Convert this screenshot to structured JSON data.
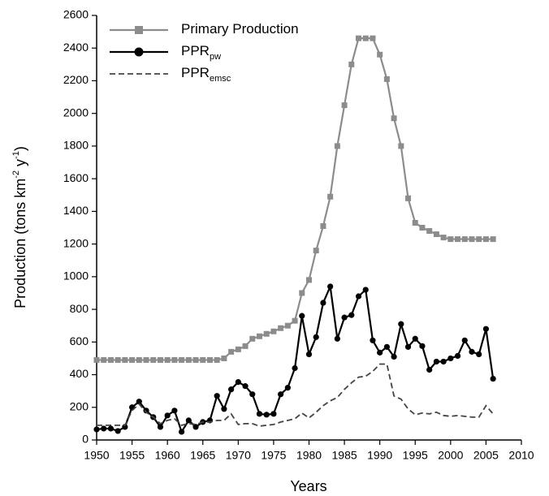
{
  "chart_data": {
    "type": "line",
    "x_label": "Years",
    "y_label": [
      {
        "text": "Production (tons km"
      },
      {
        "text": "-2",
        "sup": true
      },
      {
        "text": " y"
      },
      {
        "text": "-1",
        "sup": true
      },
      {
        "text": ")"
      }
    ],
    "xlim": [
      1950,
      2010
    ],
    "xticks": [
      1950,
      1955,
      1960,
      1965,
      1970,
      1975,
      1980,
      1985,
      1990,
      1995,
      2000,
      2005,
      2010
    ],
    "ylim": [
      0,
      2600
    ],
    "yticks": [
      0,
      200,
      400,
      600,
      800,
      1000,
      1200,
      1400,
      1600,
      1800,
      2000,
      2200,
      2400,
      2600
    ],
    "legend": "upper left",
    "x": [
      1950,
      1951,
      1952,
      1953,
      1954,
      1955,
      1956,
      1957,
      1958,
      1959,
      1960,
      1961,
      1962,
      1963,
      1964,
      1965,
      1966,
      1967,
      1968,
      1969,
      1970,
      1971,
      1972,
      1973,
      1974,
      1975,
      1976,
      1977,
      1978,
      1979,
      1980,
      1981,
      1982,
      1983,
      1984,
      1985,
      1986,
      1987,
      1988,
      1989,
      1990,
      1991,
      1992,
      1993,
      1994,
      1995,
      1996,
      1997,
      1998,
      1999,
      2000,
      2001,
      2002,
      2003,
      2004,
      2005,
      2006
    ],
    "series": [
      {
        "name": "Primary Production",
        "color": "#8c8c8c",
        "marker": "square",
        "dash": false,
        "values": [
          490,
          490,
          490,
          490,
          490,
          490,
          490,
          490,
          490,
          490,
          490,
          490,
          490,
          490,
          490,
          490,
          490,
          490,
          500,
          540,
          555,
          575,
          620,
          635,
          650,
          665,
          685,
          700,
          730,
          900,
          980,
          1160,
          1310,
          1490,
          1800,
          2050,
          2300,
          2460,
          2460,
          2460,
          2360,
          2210,
          1970,
          1800,
          1480,
          1330,
          1300,
          1280,
          1260,
          1240,
          1230,
          1230,
          1230,
          1230,
          1230,
          1230,
          1230
        ]
      },
      {
        "name": "PPR",
        "name_sub": "pw",
        "color": "#000000",
        "marker": "circle",
        "dash": false,
        "values": [
          65,
          70,
          70,
          55,
          80,
          200,
          235,
          180,
          140,
          80,
          150,
          180,
          50,
          120,
          80,
          110,
          120,
          270,
          190,
          310,
          355,
          330,
          280,
          160,
          155,
          160,
          280,
          320,
          440,
          760,
          525,
          630,
          840,
          940,
          620,
          750,
          765,
          880,
          920,
          610,
          535,
          570,
          510,
          710,
          570,
          620,
          575,
          430,
          480,
          480,
          500,
          515,
          610,
          540,
          525,
          680,
          375
        ]
      },
      {
        "name": "PPR",
        "name_sub": "emsc",
        "color": "#444444",
        "marker": "none",
        "dash": true,
        "values": [
          90,
          90,
          90,
          90,
          90,
          180,
          220,
          170,
          140,
          100,
          120,
          130,
          90,
          100,
          95,
          110,
          110,
          120,
          120,
          160,
          95,
          100,
          100,
          85,
          90,
          95,
          110,
          120,
          130,
          165,
          135,
          170,
          210,
          240,
          260,
          310,
          350,
          385,
          390,
          420,
          465,
          465,
          270,
          250,
          190,
          155,
          165,
          160,
          170,
          150,
          145,
          150,
          145,
          140,
          140,
          210,
          160
        ]
      }
    ]
  }
}
